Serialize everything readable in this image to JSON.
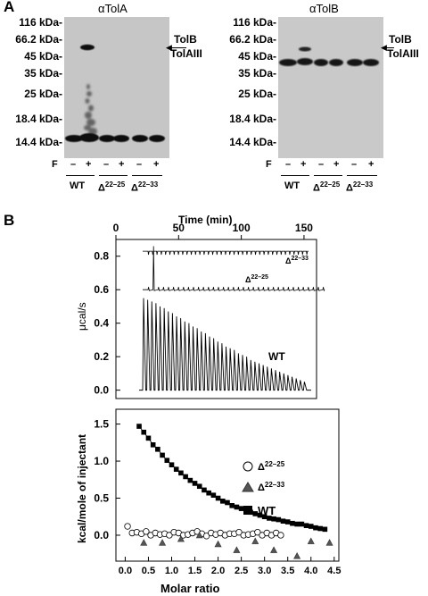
{
  "panel_a": {
    "letter": "A",
    "left_blot": {
      "title": "αTolA",
      "mw_markers": [
        "116 kDa-",
        "66.2 kDa-",
        "45 kDa-",
        "35 kDa-",
        "25 kDa-",
        "18.4 kDa-",
        "14.4 kDa-"
      ],
      "annotations": [
        "TolB",
        "TolAIII"
      ]
    },
    "right_blot": {
      "title": "αTolB",
      "mw_markers": [
        "116 kDa-",
        "66.2 kDa-",
        "45 kDa-",
        "35 kDa-",
        "25 kDa-",
        "18.4 kDa-",
        "14.4 kDa-"
      ],
      "annotations": [
        "TolB",
        "TolAIII"
      ]
    },
    "lane_labels": {
      "f_label": "F",
      "signs": [
        "–",
        "+",
        "–",
        "+",
        "–",
        "+"
      ]
    },
    "groups": {
      "wt": "WT",
      "d1_base": "Δ",
      "d1_sup": "22–25",
      "d2_base": "Δ",
      "d2_sup": "22–33"
    }
  },
  "panel_b": {
    "letter": "B",
    "top_plot": {
      "xlabel": "Time (min)",
      "ylabel": "μcal/s",
      "x_ticks": [
        "0",
        "50",
        "100",
        "150"
      ],
      "y_ticks": [
        "0.0",
        "0.2",
        "0.4",
        "0.6",
        "0.8"
      ],
      "trace_labels": {
        "d2_base": "Δ",
        "d2_sup": "22–33",
        "d1_base": "Δ",
        "d1_sup": "22–25",
        "wt": "WT"
      }
    },
    "bottom_plot": {
      "ylabel": "kcal/mole of injectant",
      "xlabel": "Molar ratio",
      "y_ticks": [
        "0.0",
        "0.5",
        "1.0",
        "1.5"
      ],
      "x_ticks": [
        "0.0",
        "0.5",
        "1.0",
        "1.5",
        "2.0",
        "2.5",
        "3.0",
        "3.5",
        "4.0",
        "4.5"
      ],
      "legend": [
        {
          "symbol": "open-circle",
          "base": "Δ",
          "sup": "22–25"
        },
        {
          "symbol": "filled-triangle",
          "base": "Δ",
          "sup": "22–33"
        },
        {
          "symbol": "filled-square",
          "base": "WT",
          "sup": ""
        }
      ]
    }
  },
  "chart_data": [
    {
      "type": "line",
      "xlabel": "Time (min)",
      "ylabel": "μcal/s",
      "xlim": [
        0,
        160
      ],
      "ylim": [
        -0.05,
        0.9
      ],
      "series": [
        {
          "name": "WT",
          "peak_heights": [
            0.55,
            0.54,
            0.53,
            0.52,
            0.5,
            0.49,
            0.47,
            0.46,
            0.44,
            0.43,
            0.41,
            0.4,
            0.38,
            0.37,
            0.35,
            0.34,
            0.32,
            0.31,
            0.29,
            0.28,
            0.26,
            0.25,
            0.24,
            0.22,
            0.21,
            0.2,
            0.18,
            0.17,
            0.16,
            0.15,
            0.14,
            0.13,
            0.12,
            0.11,
            0.1,
            0.09,
            0.08,
            0.07,
            0.06,
            0.05
          ]
        },
        {
          "name": "Δ22–25",
          "baseline": 0.6,
          "first_spike": 0.86
        },
        {
          "name": "Δ22–33",
          "baseline": 0.83
        }
      ]
    },
    {
      "type": "scatter",
      "xlabel": "Molar ratio",
      "ylabel": "kcal/mole of injectant",
      "xlim": [
        -0.2,
        4.6
      ],
      "ylim": [
        -0.35,
        1.7
      ],
      "series": [
        {
          "name": "WT",
          "x": [
            0.3,
            0.4,
            0.5,
            0.6,
            0.7,
            0.8,
            0.9,
            1.0,
            1.1,
            1.2,
            1.3,
            1.4,
            1.5,
            1.6,
            1.7,
            1.8,
            1.9,
            2.0,
            2.1,
            2.2,
            2.3,
            2.4,
            2.5,
            2.6,
            2.7,
            2.8,
            2.9,
            3.0,
            3.1,
            3.2,
            3.3,
            3.4,
            3.5,
            3.6,
            3.7,
            3.8,
            3.9,
            4.0,
            4.1,
            4.2,
            4.3
          ],
          "y": [
            1.47,
            1.39,
            1.31,
            1.22,
            1.16,
            1.08,
            1.01,
            0.95,
            0.89,
            0.84,
            0.79,
            0.74,
            0.7,
            0.66,
            0.61,
            0.57,
            0.54,
            0.5,
            0.46,
            0.44,
            0.4,
            0.38,
            0.36,
            0.33,
            0.31,
            0.29,
            0.27,
            0.25,
            0.23,
            0.22,
            0.21,
            0.19,
            0.18,
            0.16,
            0.15,
            0.15,
            0.13,
            0.12,
            0.1,
            0.09,
            0.08
          ]
        },
        {
          "name": "Δ22–25",
          "x": [
            0.05,
            0.15,
            0.25,
            0.35,
            0.45,
            0.55,
            0.65,
            0.75,
            0.85,
            0.95,
            1.05,
            1.15,
            1.25,
            1.35,
            1.45,
            1.55,
            1.65,
            1.75,
            1.85,
            1.95,
            2.05,
            2.15,
            2.25,
            2.35,
            2.45,
            2.55,
            2.65,
            2.75,
            2.85,
            2.95,
            3.05,
            3.15,
            3.25,
            3.35
          ],
          "y": [
            0.12,
            0.03,
            0.04,
            0.02,
            0.05,
            0.0,
            0.03,
            0.01,
            0.02,
            0.0,
            0.04,
            0.03,
            0.0,
            0.01,
            0.03,
            0.05,
            0.02,
            -0.01,
            0.03,
            0.01,
            0.03,
            0.0,
            0.02,
            0.02,
            0.04,
            0.0,
            0.01,
            0.02,
            0.04,
            0.0,
            0.03,
            0.0,
            0.03,
            0.0
          ]
        },
        {
          "name": "Δ22–33",
          "x": [
            0.4,
            0.8,
            1.2,
            1.6,
            2.0,
            2.4,
            2.8,
            3.2,
            3.7,
            4.0,
            4.4
          ],
          "y": [
            -0.1,
            -0.1,
            -0.05,
            0.0,
            -0.12,
            -0.2,
            -0.08,
            -0.2,
            -0.28,
            -0.08,
            -0.1
          ]
        }
      ]
    }
  ]
}
